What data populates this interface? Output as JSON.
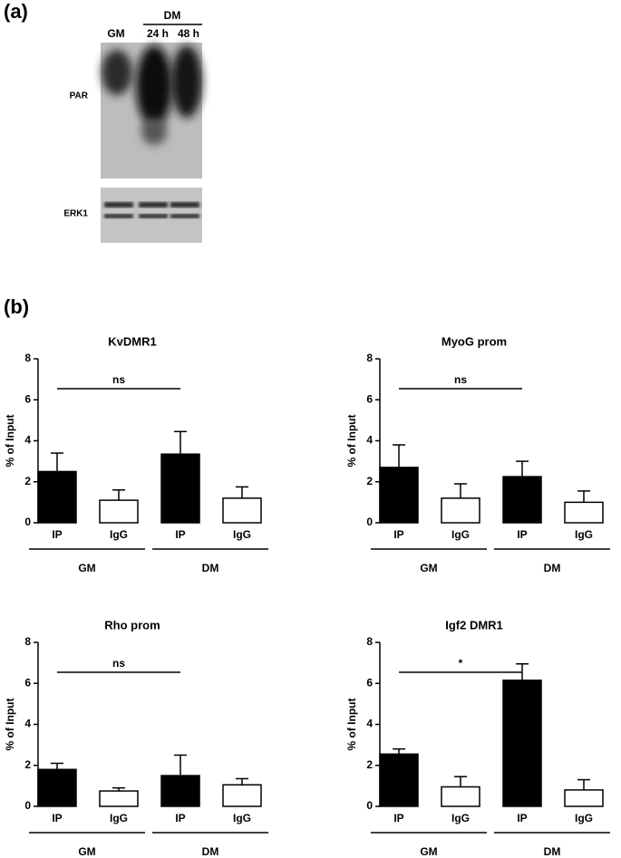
{
  "panel_a": {
    "label": "(a)",
    "group": "DM",
    "lanes": [
      "GM",
      "24 h",
      "48 h"
    ],
    "blots": [
      "PAR",
      "ERK1"
    ]
  },
  "panel_b": {
    "label": "(b)"
  },
  "chart_data": [
    {
      "type": "bar",
      "title": "KvDMR1",
      "y_label": "% of Input",
      "categories": [
        "IP",
        "IgG",
        "IP",
        "IgG"
      ],
      "groups": [
        "GM",
        "DM"
      ],
      "values": [
        2.5,
        1.1,
        3.35,
        1.2
      ],
      "errors": [
        0.9,
        0.5,
        1.1,
        0.55
      ],
      "colors": [
        "#000000",
        "#ffffff",
        "#000000",
        "#ffffff"
      ],
      "ylim": [
        0,
        8
      ],
      "yticks": [
        0,
        2,
        4,
        6,
        8
      ],
      "annotation": "ns"
    },
    {
      "type": "bar",
      "title": "MyoG prom",
      "y_label": "% of Input",
      "categories": [
        "IP",
        "IgG",
        "IP",
        "IgG"
      ],
      "groups": [
        "GM",
        "DM"
      ],
      "values": [
        2.7,
        1.2,
        2.25,
        1.0
      ],
      "errors": [
        1.1,
        0.7,
        0.75,
        0.55
      ],
      "colors": [
        "#000000",
        "#ffffff",
        "#000000",
        "#ffffff"
      ],
      "ylim": [
        0,
        8
      ],
      "yticks": [
        0,
        2,
        4,
        6,
        8
      ],
      "annotation": "ns"
    },
    {
      "type": "bar",
      "title": "Rho prom",
      "y_label": "% of Input",
      "categories": [
        "IP",
        "IgG",
        "IP",
        "IgG"
      ],
      "groups": [
        "GM",
        "DM"
      ],
      "values": [
        1.8,
        0.75,
        1.5,
        1.05
      ],
      "errors": [
        0.3,
        0.15,
        1.0,
        0.3
      ],
      "colors": [
        "#000000",
        "#ffffff",
        "#000000",
        "#ffffff"
      ],
      "ylim": [
        0,
        8
      ],
      "yticks": [
        0,
        2,
        4,
        6,
        8
      ],
      "annotation": "ns"
    },
    {
      "type": "bar",
      "title": "Igf2 DMR1",
      "y_label": "% of Input",
      "categories": [
        "IP",
        "IgG",
        "IP",
        "IgG"
      ],
      "groups": [
        "GM",
        "DM"
      ],
      "values": [
        2.55,
        0.95,
        6.15,
        0.8
      ],
      "errors": [
        0.25,
        0.5,
        0.8,
        0.5
      ],
      "colors": [
        "#000000",
        "#ffffff",
        "#000000",
        "#ffffff"
      ],
      "ylim": [
        0,
        8
      ],
      "yticks": [
        0,
        2,
        4,
        6,
        8
      ],
      "annotation": "*"
    }
  ]
}
